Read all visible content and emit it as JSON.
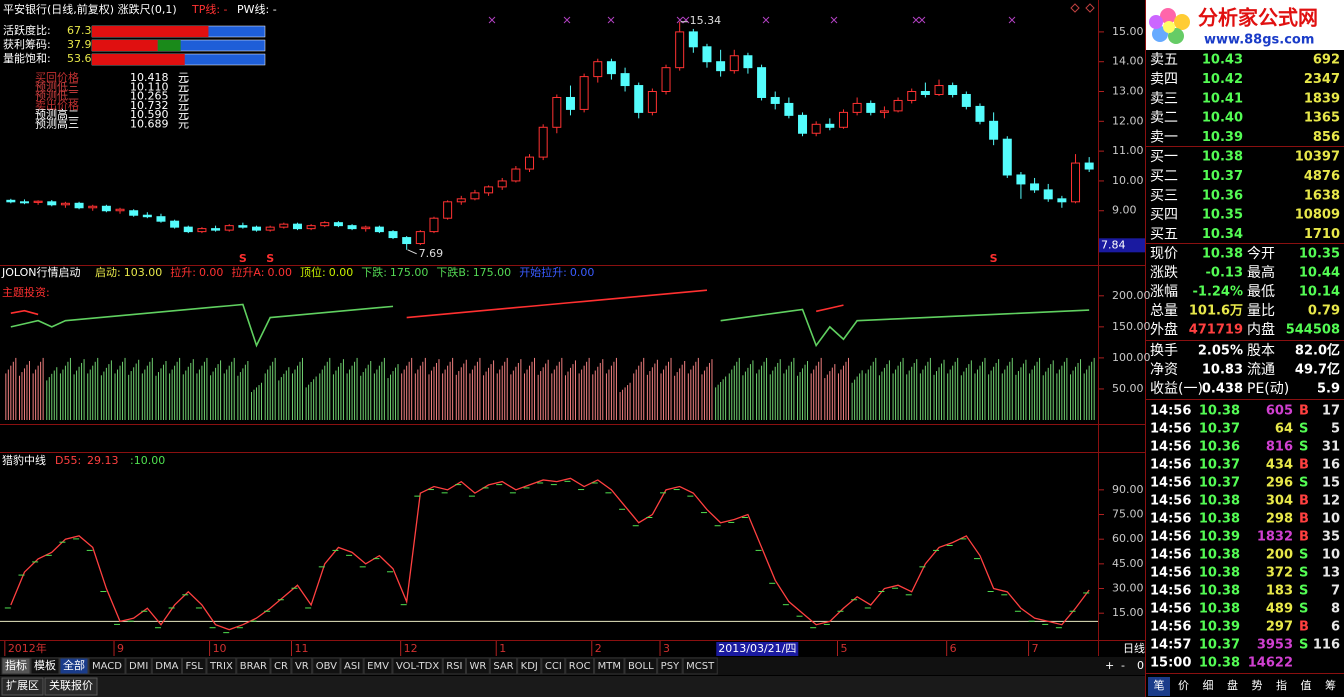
{
  "window": {
    "title": "平安银行(日线,前复权) 涨跌尺(0,1)",
    "tp_label": "TP线: -",
    "pw_label": "PW线: -"
  },
  "overlay": {
    "metrics": [
      {
        "label": "活跃度比:",
        "value": 67.31,
        "value_label": "67.31%"
      },
      {
        "label": "获利筹码:",
        "value": 37.95,
        "value_label": "37.95%"
      },
      {
        "label": "量能饱和:",
        "value": 53.6,
        "value_label": "53.60%"
      }
    ],
    "predictions": [
      {
        "label": "买回价格",
        "value": "10.418"
      },
      {
        "label": "预测低三",
        "value": "10.110"
      },
      {
        "label": "预测低二",
        "value": "10.265"
      },
      {
        "label": "卖出价格",
        "value": "10.732"
      },
      {
        "label": "预测高二",
        "value": "10.590"
      },
      {
        "label": "预测高三",
        "value": "10.689"
      }
    ],
    "unit": "元"
  },
  "price_chart": {
    "type": "candlestick",
    "up_color": "#ff3232",
    "down_color": "#54fcfc",
    "ylim": [
      7.18,
      16.07
    ],
    "yticks": [
      {
        "value": 9,
        "label": "9.00"
      },
      {
        "value": 10,
        "label": "10.00"
      },
      {
        "value": 11,
        "label": "11.00"
      },
      {
        "value": 12,
        "label": "12.00"
      },
      {
        "value": 13,
        "label": "13.00"
      },
      {
        "value": 14,
        "label": "14.00"
      },
      {
        "value": 15,
        "label": "15.00"
      }
    ],
    "cursor_price": {
      "value": 7.84,
      "label": "7.84"
    },
    "signal_label": "S",
    "signal_indices": [
      17,
      19,
      72
    ],
    "candles": [
      [
        9.35,
        9.4,
        9.25,
        9.3
      ],
      [
        9.3,
        9.38,
        9.22,
        9.28
      ],
      [
        9.28,
        9.35,
        9.2,
        9.32
      ],
      [
        9.3,
        9.36,
        9.15,
        9.2
      ],
      [
        9.2,
        9.3,
        9.1,
        9.25
      ],
      [
        9.25,
        9.3,
        9.05,
        9.1
      ],
      [
        9.1,
        9.2,
        9.0,
        9.15
      ],
      [
        9.15,
        9.2,
        8.95,
        9.0
      ],
      [
        9.0,
        9.1,
        8.9,
        9.05
      ],
      [
        9.0,
        9.05,
        8.8,
        8.85
      ],
      [
        8.85,
        8.95,
        8.75,
        8.8
      ],
      [
        8.8,
        8.9,
        8.6,
        8.65
      ],
      [
        8.65,
        8.7,
        8.4,
        8.45
      ],
      [
        8.45,
        8.5,
        8.25,
        8.3
      ],
      [
        8.3,
        8.45,
        8.25,
        8.4
      ],
      [
        8.4,
        8.5,
        8.3,
        8.35
      ],
      [
        8.35,
        8.55,
        8.3,
        8.5
      ],
      [
        8.5,
        8.6,
        8.4,
        8.45
      ],
      [
        8.45,
        8.5,
        8.3,
        8.35
      ],
      [
        8.35,
        8.5,
        8.3,
        8.45
      ],
      [
        8.45,
        8.6,
        8.4,
        8.55
      ],
      [
        8.55,
        8.6,
        8.35,
        8.4
      ],
      [
        8.4,
        8.55,
        8.35,
        8.5
      ],
      [
        8.5,
        8.65,
        8.45,
        8.6
      ],
      [
        8.6,
        8.65,
        8.45,
        8.5
      ],
      [
        8.5,
        8.55,
        8.35,
        8.4
      ],
      [
        8.4,
        8.5,
        8.3,
        8.45
      ],
      [
        8.45,
        8.5,
        8.25,
        8.3
      ],
      [
        8.3,
        8.35,
        8.05,
        8.1
      ],
      [
        8.1,
        8.15,
        7.69,
        7.9
      ],
      [
        7.9,
        8.35,
        7.85,
        8.3
      ],
      [
        8.3,
        8.8,
        8.25,
        8.75
      ],
      [
        8.75,
        9.35,
        8.7,
        9.3
      ],
      [
        9.3,
        9.5,
        9.2,
        9.4
      ],
      [
        9.4,
        9.7,
        9.35,
        9.6
      ],
      [
        9.6,
        9.85,
        9.5,
        9.8
      ],
      [
        9.8,
        10.1,
        9.7,
        10.0
      ],
      [
        10.0,
        10.5,
        9.95,
        10.4
      ],
      [
        10.4,
        10.9,
        10.3,
        10.8
      ],
      [
        10.8,
        11.9,
        10.7,
        11.8
      ],
      [
        11.8,
        12.9,
        11.6,
        12.8
      ],
      [
        12.8,
        13.2,
        12.2,
        12.4
      ],
      [
        12.4,
        13.6,
        12.3,
        13.5
      ],
      [
        13.5,
        14.1,
        13.3,
        14.0
      ],
      [
        14.0,
        14.1,
        13.4,
        13.6
      ],
      [
        13.6,
        13.8,
        13.0,
        13.2
      ],
      [
        13.2,
        13.3,
        12.1,
        12.3
      ],
      [
        12.3,
        13.1,
        12.2,
        13.0
      ],
      [
        13.0,
        13.9,
        12.9,
        13.8
      ],
      [
        13.8,
        15.34,
        13.7,
        15.0
      ],
      [
        15.0,
        15.1,
        14.3,
        14.5
      ],
      [
        14.5,
        14.6,
        13.8,
        14.0
      ],
      [
        14.0,
        14.4,
        13.5,
        13.7
      ],
      [
        13.7,
        14.4,
        13.6,
        14.2
      ],
      [
        14.2,
        14.3,
        13.6,
        13.8
      ],
      [
        13.8,
        13.9,
        12.7,
        12.8
      ],
      [
        12.8,
        13.0,
        12.4,
        12.6
      ],
      [
        12.6,
        12.8,
        12.1,
        12.2
      ],
      [
        12.2,
        12.3,
        11.5,
        11.6
      ],
      [
        11.6,
        12.0,
        11.5,
        11.9
      ],
      [
        11.9,
        12.1,
        11.7,
        11.8
      ],
      [
        11.8,
        12.4,
        11.75,
        12.3
      ],
      [
        12.3,
        12.8,
        12.2,
        12.6
      ],
      [
        12.6,
        12.7,
        12.2,
        12.3
      ],
      [
        12.3,
        12.5,
        12.1,
        12.35
      ],
      [
        12.35,
        12.8,
        12.3,
        12.7
      ],
      [
        12.7,
        13.1,
        12.6,
        13.0
      ],
      [
        13.0,
        13.3,
        12.8,
        12.9
      ],
      [
        12.9,
        13.4,
        12.85,
        13.2
      ],
      [
        13.2,
        13.3,
        12.8,
        12.9
      ],
      [
        12.9,
        13.0,
        12.4,
        12.5
      ],
      [
        12.5,
        12.6,
        11.9,
        12.0
      ],
      [
        12.0,
        12.3,
        11.2,
        11.4
      ],
      [
        11.4,
        11.5,
        10.1,
        10.2
      ],
      [
        10.2,
        10.3,
        9.4,
        9.9
      ],
      [
        9.9,
        10.1,
        9.6,
        9.7
      ],
      [
        9.7,
        9.9,
        9.3,
        9.4
      ],
      [
        9.4,
        9.5,
        9.1,
        9.3
      ],
      [
        9.3,
        10.9,
        9.25,
        10.6
      ],
      [
        10.6,
        10.8,
        10.3,
        10.4
      ]
    ]
  },
  "jolon": {
    "title": "JOLON行情启动",
    "items": [
      {
        "label": "启动:",
        "value": "103.00",
        "color": "#e8e84a"
      },
      {
        "label": "拉升:",
        "value": "0.00",
        "color": "#ff3232"
      },
      {
        "label": "拉升A:",
        "value": "0.00",
        "color": "#ff3232"
      },
      {
        "label": "顶位:",
        "value": "0.00",
        "color": "#c8f000"
      },
      {
        "label": "下跌:",
        "value": "175.00",
        "color": "#54d854"
      },
      {
        "label": "下跌B:",
        "value": "175.00",
        "color": "#54d854"
      },
      {
        "label": "开始拉升:",
        "value": "0.00",
        "color": "#3a5cff"
      }
    ],
    "subtitle": "主题投资:",
    "ylim": [
      0,
      248
    ],
    "yticks": [
      {
        "value": 50,
        "label": "50.00"
      },
      {
        "value": 100,
        "label": "100.00"
      },
      {
        "value": 150,
        "label": "150.00"
      },
      {
        "value": 200,
        "label": "200.00"
      }
    ],
    "red_color": "#ff3030",
    "green_color": "#60d060",
    "red": [
      172,
      176,
      170,
      null,
      null,
      null,
      null,
      null,
      null,
      null,
      null,
      null,
      null,
      null,
      null,
      null,
      null,
      null,
      null,
      null,
      null,
      null,
      null,
      null,
      null,
      null,
      null,
      null,
      null,
      165,
      167,
      169,
      171,
      173,
      175,
      177,
      179,
      181,
      183,
      185,
      187,
      189,
      191,
      193,
      195,
      197,
      199,
      201,
      203,
      205,
      207,
      209,
      null,
      null,
      null,
      null,
      null,
      null,
      null,
      175,
      180,
      185,
      null,
      null,
      null,
      null,
      null,
      null,
      null,
      null,
      null,
      null,
      null,
      null,
      null,
      null,
      null,
      null,
      null,
      null
    ],
    "green": [
      150,
      155,
      160,
      150,
      160,
      162,
      164,
      166,
      168,
      170,
      172,
      174,
      176,
      178,
      180,
      182,
      184,
      186,
      120,
      165,
      167,
      169,
      171,
      173,
      175,
      177,
      179,
      181,
      183,
      null,
      null,
      null,
      null,
      null,
      null,
      null,
      null,
      null,
      null,
      null,
      null,
      null,
      null,
      null,
      null,
      null,
      null,
      null,
      null,
      null,
      null,
      null,
      160,
      163,
      166,
      169,
      172,
      175,
      178,
      120,
      150,
      130,
      160,
      161,
      162,
      163,
      164,
      165,
      166,
      167,
      168,
      169,
      170,
      171,
      172,
      173,
      174,
      175,
      176,
      177
    ],
    "bars": [
      100,
      95,
      100,
      85,
      100,
      98,
      100,
      96,
      100,
      97,
      100,
      95,
      100,
      98,
      100,
      96,
      100,
      95,
      60,
      100,
      85,
      100,
      70,
      100,
      98,
      100,
      95,
      100,
      90,
      100,
      100,
      98,
      100,
      97,
      100,
      96,
      100,
      98,
      100,
      97,
      100,
      96,
      100,
      98,
      100,
      60,
      100,
      97,
      100,
      95,
      100,
      98,
      70,
      100,
      96,
      100,
      98,
      100,
      95,
      100,
      90,
      100,
      80,
      100,
      96,
      100,
      98,
      100,
      97,
      100,
      96,
      100,
      98,
      100,
      97,
      100,
      96,
      100,
      98,
      100
    ]
  },
  "oscillator": {
    "title": "猎豹中线",
    "series_name": "D55:",
    "series_label": "29.13",
    "level": {
      "value": 10,
      "label": ":10.00"
    },
    "color": "#ff4040",
    "marker_color": "#50e050",
    "ylim": [
      -1.3,
      112.4
    ],
    "yticks": [
      {
        "value": 15,
        "label": "15.00"
      },
      {
        "value": 30,
        "label": "30.00"
      },
      {
        "value": 45,
        "label": "45.00"
      },
      {
        "value": 60,
        "label": "60.00"
      },
      {
        "value": 75,
        "label": "75.00"
      },
      {
        "value": 90,
        "label": "90.00"
      }
    ],
    "values": [
      20,
      40,
      48,
      52,
      60,
      62,
      55,
      30,
      10,
      12,
      18,
      8,
      20,
      28,
      20,
      8,
      5,
      8,
      12,
      18,
      25,
      32,
      20,
      45,
      55,
      52,
      45,
      50,
      42,
      22,
      88,
      92,
      90,
      95,
      88,
      93,
      95,
      90,
      93,
      96,
      95,
      97,
      92,
      96,
      90,
      80,
      70,
      75,
      90,
      92,
      88,
      78,
      70,
      72,
      75,
      55,
      35,
      22,
      15,
      8,
      10,
      18,
      25,
      20,
      30,
      32,
      28,
      45,
      55,
      58,
      62,
      50,
      30,
      28,
      18,
      12,
      10,
      8,
      18,
      29.13
    ]
  },
  "x_axis": {
    "labels": [
      "2012年",
      "9",
      "10",
      "11",
      "12",
      "1",
      "2",
      "3",
      "5",
      "6",
      "7"
    ],
    "indices": [
      0,
      8,
      15,
      21,
      29,
      36,
      43,
      48,
      61,
      69,
      75
    ],
    "cursor_label": "2013/03/21/四",
    "cursor_index": 53,
    "period_label": "日线"
  },
  "toolbar": {
    "tabs": [
      "指标",
      "模板",
      "全部",
      "MACD",
      "DMI",
      "DMA",
      "FSL",
      "TRIX",
      "BRAR",
      "CR",
      "VR",
      "OBV",
      "ASI",
      "EMV",
      "VOL-TDX",
      "RSI",
      "WR",
      "SAR",
      "KDJ",
      "CCI",
      "ROC",
      "MTM",
      "BOLL",
      "PSY",
      "MCST"
    ],
    "controls": [
      "+",
      "-",
      "0"
    ],
    "bottom_tabs": [
      "扩展区",
      "关联报价"
    ]
  },
  "quote_panel": {
    "logo": {
      "name": "分析家公式网",
      "url": "www.88gs.com"
    },
    "asks": [
      [
        "卖五",
        "10.43",
        "692"
      ],
      [
        "卖四",
        "10.42",
        "2347"
      ],
      [
        "卖三",
        "10.41",
        "1839"
      ],
      [
        "卖二",
        "10.40",
        "1365"
      ],
      [
        "卖一",
        "10.39",
        "856"
      ]
    ],
    "bids": [
      [
        "买一",
        "10.38",
        "10397"
      ],
      [
        "买二",
        "10.37",
        "4876"
      ],
      [
        "买三",
        "10.36",
        "1638"
      ],
      [
        "买四",
        "10.35",
        "10809"
      ],
      [
        "买五",
        "10.34",
        "1710"
      ]
    ],
    "stats": [
      [
        "现价",
        "10.38",
        "今开",
        "10.35"
      ],
      [
        "涨跌",
        "-0.13",
        "最高",
        "10.44"
      ],
      [
        "涨幅",
        "-1.24%",
        "最低",
        "10.14"
      ],
      [
        "总量",
        "101.6万",
        "量比",
        "0.79"
      ],
      [
        "外盘",
        "471719",
        "内盘",
        "544508"
      ],
      [
        "换手",
        "2.05%",
        "股本",
        "82.0亿"
      ],
      [
        "净资",
        "10.83",
        "流通",
        "49.7亿"
      ],
      [
        "收益(一)",
        "0.438",
        "PE(动)",
        "5.9"
      ]
    ],
    "ticks": [
      [
        "14:56",
        "10.38",
        "605",
        "B",
        "17"
      ],
      [
        "14:56",
        "10.37",
        "64",
        "S",
        "5"
      ],
      [
        "14:56",
        "10.36",
        "816",
        "S",
        "31"
      ],
      [
        "14:56",
        "10.37",
        "434",
        "B",
        "16"
      ],
      [
        "14:56",
        "10.37",
        "296",
        "S",
        "15"
      ],
      [
        "14:56",
        "10.38",
        "304",
        "B",
        "12"
      ],
      [
        "14:56",
        "10.38",
        "298",
        "B",
        "10"
      ],
      [
        "14:56",
        "10.39",
        "1832",
        "B",
        "35"
      ],
      [
        "14:56",
        "10.38",
        "200",
        "S",
        "10"
      ],
      [
        "14:56",
        "10.38",
        "372",
        "S",
        "13"
      ],
      [
        "14:56",
        "10.38",
        "183",
        "S",
        "7"
      ],
      [
        "14:56",
        "10.38",
        "489",
        "S",
        "8"
      ],
      [
        "14:56",
        "10.39",
        "297",
        "B",
        "6"
      ],
      [
        "14:57",
        "10.37",
        "3953",
        "S",
        "116"
      ],
      [
        "15:00",
        "10.38",
        "14622"
      ]
    ],
    "tabs": [
      "笔",
      "价",
      "细",
      "盘",
      "势",
      "指",
      "值",
      "筹"
    ]
  }
}
